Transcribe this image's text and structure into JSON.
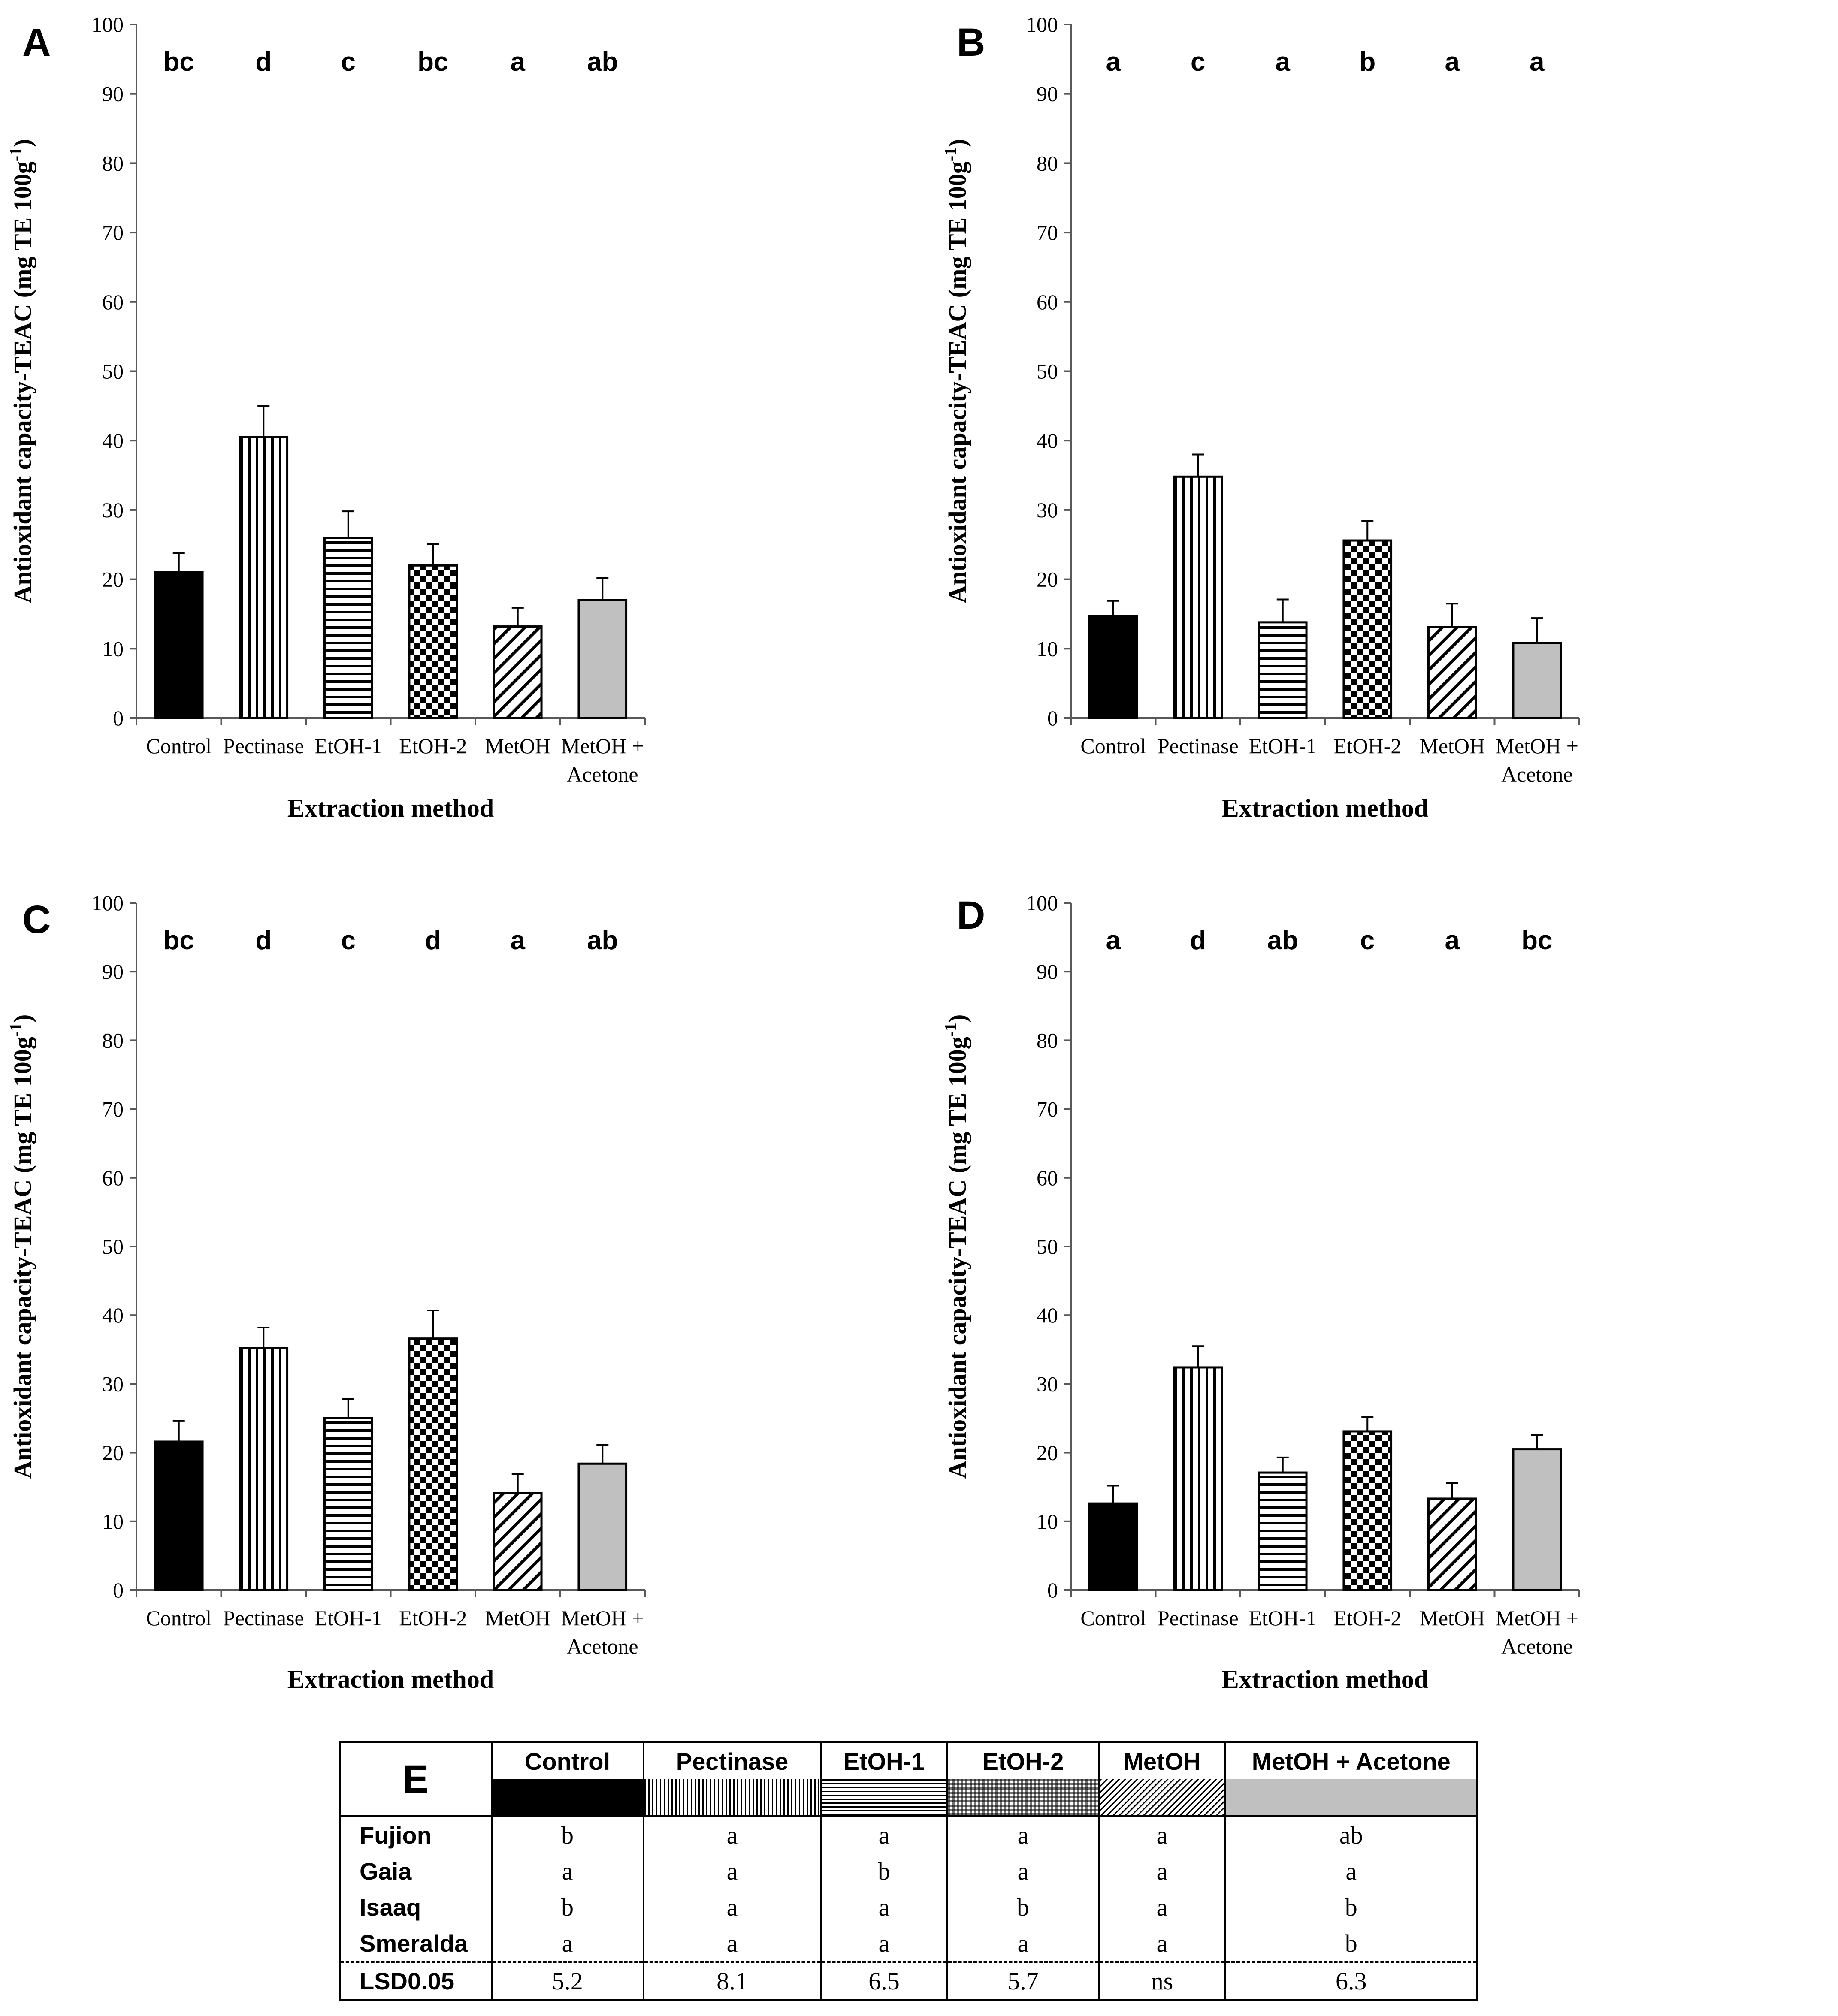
{
  "categories": [
    "Control",
    "Pectinase",
    "EtOH-1",
    "EtOH-2",
    "MetOH",
    "MetOH + Acetone"
  ],
  "category_lines": [
    [
      "Control"
    ],
    [
      "Pectinase"
    ],
    [
      "EtOH-1"
    ],
    [
      "EtOH-2"
    ],
    [
      "MetOH"
    ],
    [
      "MetOH +",
      "Acetone"
    ]
  ],
  "colors": {
    "control": "#000000",
    "metoh_acetone": "#c0c0c0",
    "axis": "#595959"
  },
  "chart_data": [
    {
      "panel": "A",
      "type": "bar",
      "xlabel": "Extraction method",
      "ylabel": "Antioxidant capacity-TEAC (mg TE 100g-1)",
      "ylim": [
        0,
        100
      ],
      "yticks": [
        0,
        10,
        20,
        30,
        40,
        50,
        60,
        70,
        80,
        90,
        100
      ],
      "categories": [
        "Control",
        "Pectinase",
        "EtOH-1",
        "EtOH-2",
        "MetOH",
        "MetOH + Acetone"
      ],
      "values": [
        21,
        40.5,
        26,
        22,
        13.2,
        17
      ],
      "errors": [
        2.8,
        4.5,
        3.8,
        3.1,
        2.7,
        3.2
      ],
      "letters": [
        "bc",
        "d",
        "c",
        "bc",
        "a",
        "ab"
      ]
    },
    {
      "panel": "B",
      "type": "bar",
      "xlabel": "Extraction method",
      "ylabel": "Antioxidant capacity-TEAC (mg TE 100g-1)",
      "ylim": [
        0,
        100
      ],
      "yticks": [
        0,
        10,
        20,
        30,
        40,
        50,
        60,
        70,
        80,
        90,
        100
      ],
      "categories": [
        "Control",
        "Pectinase",
        "EtOH-1",
        "EtOH-2",
        "MetOH",
        "MetOH + Acetone"
      ],
      "values": [
        14.7,
        34.8,
        13.8,
        25.6,
        13.1,
        10.8
      ],
      "errors": [
        2.2,
        3.2,
        3.3,
        2.8,
        3.4,
        3.6
      ],
      "letters": [
        "a",
        "c",
        "a",
        "b",
        "a",
        "a"
      ]
    },
    {
      "panel": "C",
      "type": "bar",
      "xlabel": "Extraction method",
      "ylabel": "Antioxidant capacity-TEAC  (mg TE 100g-1)",
      "ylim": [
        0,
        100
      ],
      "yticks": [
        0,
        10,
        20,
        30,
        40,
        50,
        60,
        70,
        80,
        90,
        100
      ],
      "categories": [
        "Control",
        "Pectinase",
        "EtOH-1",
        "EtOH-2",
        "MetOH",
        "MetOH + Acetone"
      ],
      "values": [
        21.6,
        35.2,
        25,
        36.6,
        14.1,
        18.4
      ],
      "errors": [
        3,
        3,
        2.8,
        4.1,
        2.8,
        2.7
      ],
      "letters": [
        "bc",
        "d",
        "c",
        "d",
        "a",
        "ab"
      ]
    },
    {
      "panel": "D",
      "type": "bar",
      "xlabel": "Extraction method",
      "ylabel": "Antioxidant capacity-TEAC (mg TE 100g-1)",
      "ylim": [
        0,
        100
      ],
      "yticks": [
        0,
        10,
        20,
        30,
        40,
        50,
        60,
        70,
        80,
        90,
        100
      ],
      "categories": [
        "Control",
        "Pectinase",
        "EtOH-1",
        "EtOH-2",
        "MetOH",
        "MetOH + Acetone"
      ],
      "values": [
        12.6,
        32.4,
        17.1,
        23.1,
        13.3,
        20.5
      ],
      "errors": [
        2.6,
        3.1,
        2.2,
        2.1,
        2.3,
        2.1
      ],
      "letters": [
        "a",
        "d",
        "ab",
        "c",
        "a",
        "bc"
      ]
    },
    {
      "panel": "E",
      "type": "table",
      "title": "E",
      "columns": [
        "Control",
        "Pectinase",
        "EtOH-1",
        "EtOH-2",
        "MetOH",
        "MetOH + Acetone"
      ],
      "rows": [
        {
          "label": "Fujion",
          "values": [
            "b",
            "a",
            "a",
            "a",
            "a",
            "ab"
          ]
        },
        {
          "label": "Gaia",
          "values": [
            "a",
            "a",
            "b",
            "a",
            "a",
            "a"
          ]
        },
        {
          "label": "Isaaq",
          "values": [
            "b",
            "a",
            "a",
            "b",
            "a",
            "b"
          ]
        },
        {
          "label": "Smeralda",
          "values": [
            "a",
            "a",
            "a",
            "a",
            "a",
            "b"
          ]
        },
        {
          "label": "LSD0.05",
          "values": [
            "5.2",
            "8.1",
            "6.5",
            "5.7",
            "ns",
            "6.3"
          ]
        }
      ]
    }
  ]
}
